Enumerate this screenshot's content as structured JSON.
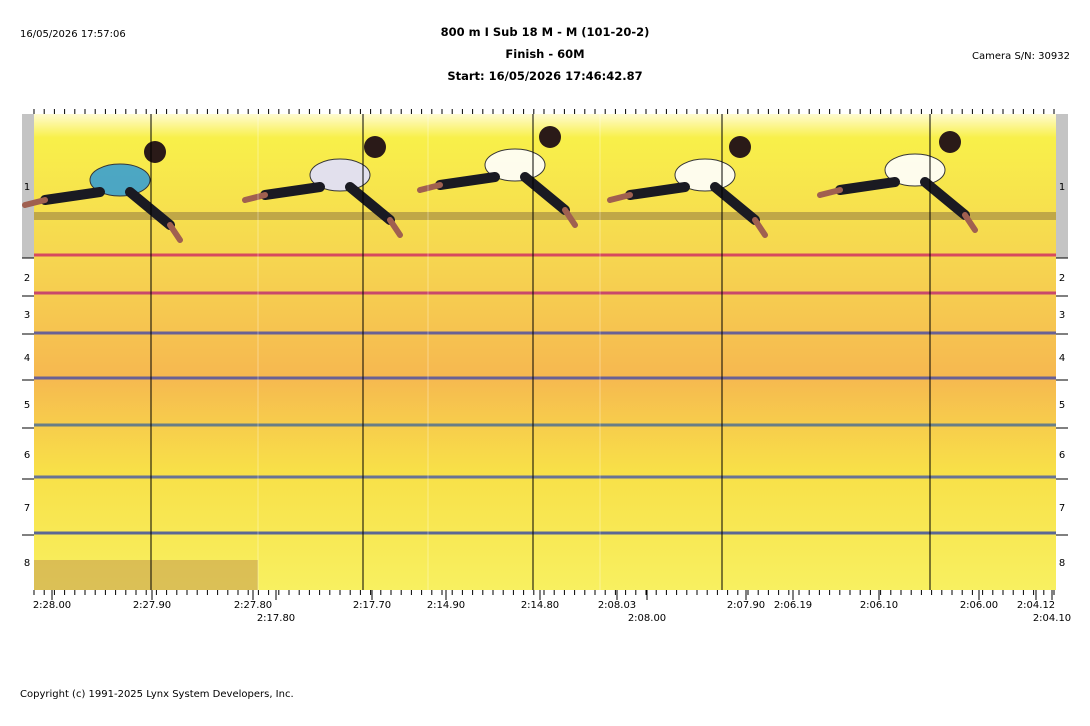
{
  "header": {
    "printed_at": "16/05/2026 17:57:06",
    "title": "800 m I Sub 18 M - M (101-20-2)",
    "subtitle": "Finish - 60M",
    "start": "Start: 16/05/2026 17:46:42.87",
    "camera": "Camera S/N: 30932"
  },
  "lanes": [
    "1",
    "2",
    "3",
    "4",
    "5",
    "6",
    "7",
    "8"
  ],
  "time_labels": [
    "2:28.00",
    "2:27.90",
    "2:27.80",
    "2:17.80",
    "2:17.70",
    "2:14.90",
    "2:14.80",
    "2:08.03",
    "2:08.00",
    "2:07.90",
    "2:06.19",
    "2:06.10",
    "2:06.00",
    "2:04.12",
    "2:04.10"
  ],
  "footer": {
    "copyright": "Copyright (c) 1991-2025 Lynx System Developers, Inc."
  }
}
